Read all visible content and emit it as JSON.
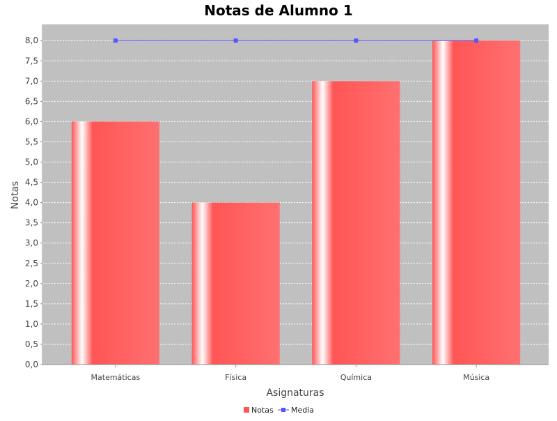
{
  "chart_data": {
    "type": "bar",
    "title": "Notas de Alumno 1",
    "xlabel": "Asignaturas",
    "ylabel": "Notas",
    "categories": [
      "Matemáticas",
      "Física",
      "Química",
      "Música"
    ],
    "series": [
      {
        "name": "Notas",
        "kind": "bar",
        "values": [
          6.0,
          4.0,
          7.0,
          8.0
        ],
        "color": "#ff5555"
      },
      {
        "name": "Media",
        "kind": "line",
        "values": [
          8.0,
          8.0,
          8.0,
          8.0
        ],
        "color": "#5555ff"
      }
    ],
    "ylim": [
      0,
      8.4
    ],
    "yticks": [
      "0,0",
      "0,5",
      "1,0",
      "1,5",
      "2,0",
      "2,5",
      "3,0",
      "3,5",
      "4,0",
      "4,5",
      "5,0",
      "5,5",
      "6,0",
      "6,5",
      "7,0",
      "7,5",
      "8,0"
    ],
    "ytick_values": [
      0,
      0.5,
      1,
      1.5,
      2,
      2.5,
      3,
      3.5,
      4,
      4.5,
      5,
      5.5,
      6,
      6.5,
      7,
      7.5,
      8
    ],
    "grid": true,
    "legend_position": "bottom-center",
    "plot_background": "#c0c0c0"
  }
}
